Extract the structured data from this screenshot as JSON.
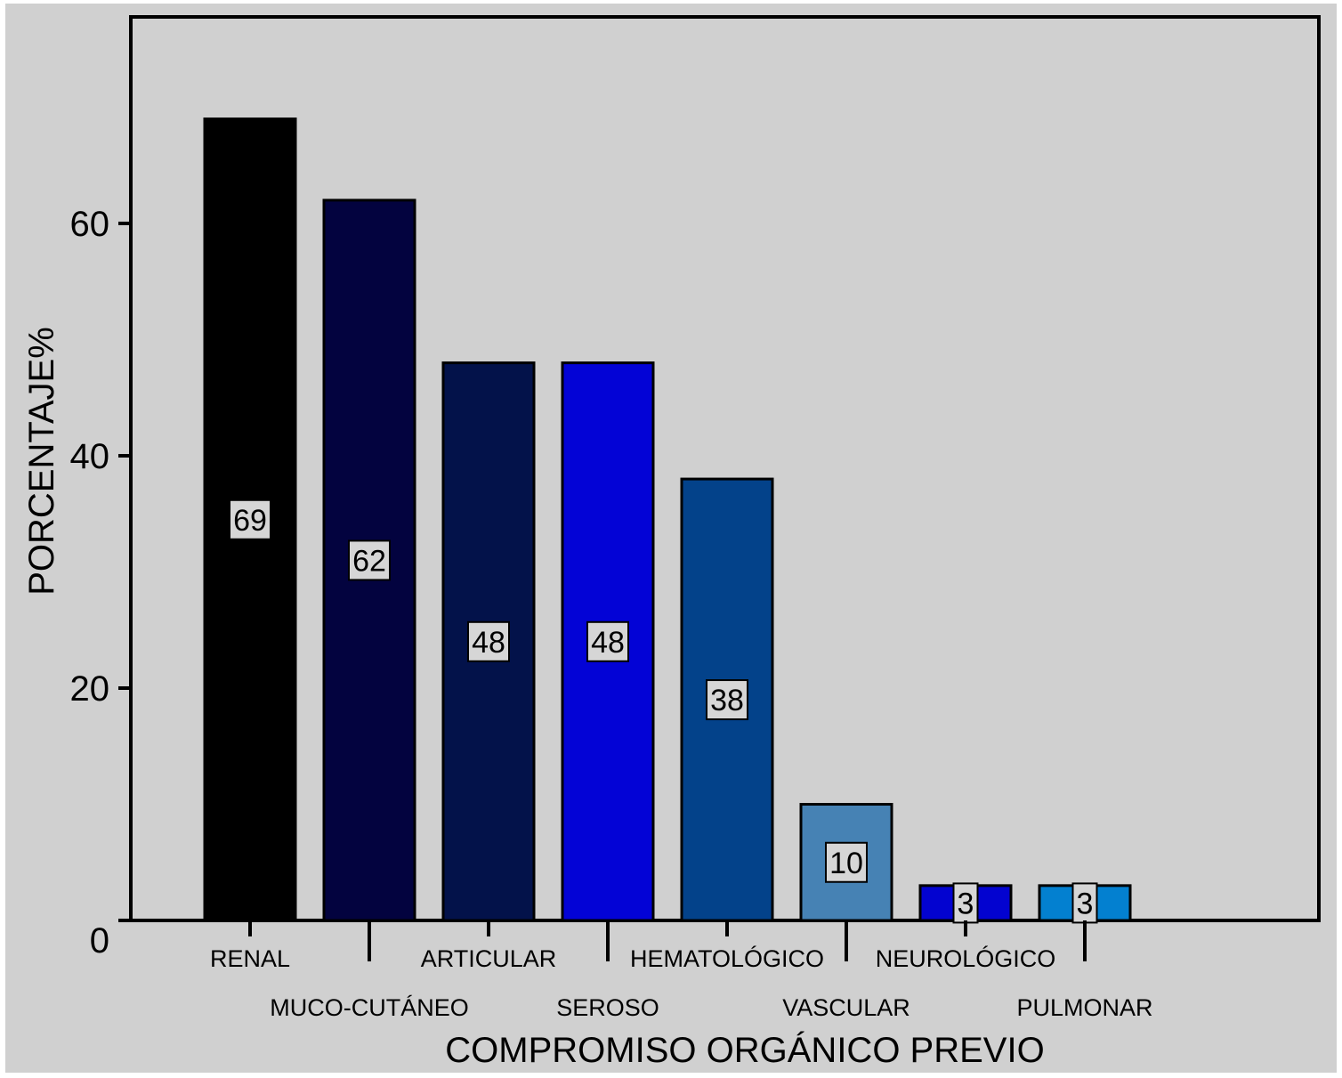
{
  "chart_data": {
    "type": "bar",
    "title": "",
    "xlabel": "COMPROMISO ORGÁNICO PREVIO",
    "ylabel": "PORCENTAJE%",
    "ylim": [
      0,
      75
    ],
    "yticks": [
      0,
      20,
      40,
      60
    ],
    "ytick_labels": [
      "0",
      "20",
      "40",
      "60"
    ],
    "grid": false,
    "legend": "none",
    "categories": [
      "RENAL",
      "MUCO-CUTÁNEO",
      "ARTICULAR",
      "SEROSO",
      "HEMATOLÓGICO",
      "VASCULAR",
      "NEUROLÓGICO",
      "PULMONAR"
    ],
    "values": [
      69,
      62,
      48,
      48,
      38,
      10,
      3,
      3
    ],
    "data_labels": [
      "69",
      "62",
      "48",
      "48",
      "38",
      "10",
      "3",
      "3"
    ],
    "bar_colors": [
      "#000000",
      "#03033f",
      "#03124a",
      "#0303d6",
      "#03428a",
      "#4682b4",
      "#0303d0",
      "#0380d0"
    ],
    "background_color": "#d0d0d0"
  }
}
